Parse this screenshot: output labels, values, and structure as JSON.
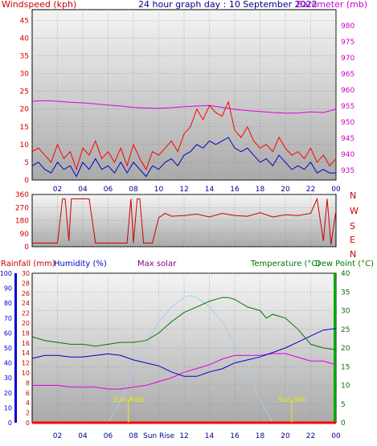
{
  "chart_data": [
    {
      "id": "wind_baro",
      "type": "line",
      "title": "24 hour graph day : 10 September 2022",
      "left_axis_label": "Windspeed (kph)",
      "right_axis_label": "Barometer (mb)",
      "x_tick_labels": [
        "02",
        "04",
        "06",
        "08",
        "10",
        "12",
        "14",
        "16",
        "18",
        "20",
        "22",
        "00"
      ],
      "x_range": [
        0,
        24
      ],
      "left_ticks": [
        "0",
        "5",
        "10",
        "15",
        "20",
        "25",
        "30",
        "35",
        "40",
        "45"
      ],
      "left_range": [
        0,
        48
      ],
      "right_ticks": [
        "935",
        "940",
        "945",
        "950",
        "955",
        "960",
        "965",
        "970",
        "975",
        "980"
      ],
      "right_range": [
        932,
        985
      ],
      "colors": {
        "gust": "#ff0000",
        "average": "#0000cc",
        "barometer": "#dd00dd"
      },
      "series": [
        {
          "key": "gust",
          "x": [
            0,
            0.5,
            1,
            1.5,
            2,
            2.5,
            3,
            3.5,
            4,
            4.5,
            5,
            5.5,
            6,
            6.5,
            7,
            7.5,
            8,
            8.5,
            9,
            9.5,
            10,
            10.5,
            11,
            11.5,
            12,
            12.5,
            13,
            13.5,
            14,
            14.5,
            15,
            15.5,
            16,
            16.5,
            17,
            17.5,
            18,
            18.5,
            19,
            19.5,
            20,
            20.5,
            21,
            21.5,
            22,
            22.5,
            23,
            23.5,
            24
          ],
          "values": [
            8,
            9,
            7,
            5,
            10,
            6,
            8,
            3,
            9,
            7,
            11,
            6,
            8,
            5,
            9,
            4,
            10,
            6,
            3,
            8,
            7,
            9,
            11,
            8,
            13,
            15,
            20,
            17,
            21,
            19,
            18,
            22,
            14,
            12,
            15,
            11,
            9,
            10,
            8,
            12,
            9,
            7,
            8,
            6,
            9,
            5,
            7,
            4,
            6
          ]
        },
        {
          "key": "average",
          "x": [
            0,
            0.5,
            1,
            1.5,
            2,
            2.5,
            3,
            3.5,
            4,
            4.5,
            5,
            5.5,
            6,
            6.5,
            7,
            7.5,
            8,
            8.5,
            9,
            9.5,
            10,
            10.5,
            11,
            11.5,
            12,
            12.5,
            13,
            13.5,
            14,
            14.5,
            15,
            15.5,
            16,
            16.5,
            17,
            17.5,
            18,
            18.5,
            19,
            19.5,
            20,
            20.5,
            21,
            21.5,
            22,
            22.5,
            23,
            23.5,
            24
          ],
          "values": [
            4,
            5,
            3,
            2,
            5,
            3,
            4,
            1,
            5,
            3,
            6,
            3,
            4,
            2,
            5,
            2,
            5,
            3,
            1,
            4,
            3,
            5,
            6,
            4,
            7,
            8,
            10,
            9,
            11,
            10,
            11,
            12,
            9,
            8,
            9,
            7,
            5,
            6,
            4,
            7,
            5,
            3,
            4,
            3,
            5,
            2,
            3,
            2,
            2
          ]
        },
        {
          "key": "barometer",
          "x": [
            0,
            1,
            2,
            3,
            4,
            5,
            6,
            7,
            8,
            9,
            10,
            11,
            12,
            13,
            14,
            15,
            16,
            17,
            18,
            19,
            20,
            21,
            22,
            23,
            24
          ],
          "values": [
            956.5,
            956.7,
            956.5,
            956.2,
            956.0,
            955.7,
            955.3,
            955.0,
            954.6,
            954.4,
            954.3,
            954.5,
            954.8,
            955.0,
            955.2,
            954.6,
            954.0,
            953.6,
            953.3,
            953.0,
            952.8,
            952.8,
            953.2,
            953.0,
            954.0
          ]
        }
      ]
    },
    {
      "id": "wind_dir",
      "type": "line",
      "left_ticks": [
        "0",
        "90",
        "180",
        "270",
        "360"
      ],
      "left_range": [
        0,
        360
      ],
      "right_labels": [
        "N",
        "W",
        "S",
        "E",
        "N"
      ],
      "color": "#cc0000",
      "series": [
        {
          "key": "direction",
          "x": [
            0,
            0.5,
            1,
            1.5,
            2,
            2.4,
            2.6,
            2.9,
            3.1,
            3.5,
            4,
            4.5,
            5,
            6,
            7,
            7.5,
            7.8,
            8,
            8.3,
            8.5,
            8.8,
            9.2,
            9.5,
            10,
            10.5,
            11,
            12,
            13,
            14,
            15,
            16,
            17,
            18,
            19,
            20,
            21,
            22,
            22.5,
            23,
            23.3,
            23.6,
            24
          ],
          "values": [
            25,
            25,
            25,
            25,
            25,
            330,
            330,
            40,
            330,
            330,
            330,
            330,
            25,
            25,
            25,
            25,
            330,
            25,
            330,
            330,
            25,
            25,
            25,
            200,
            230,
            210,
            215,
            225,
            205,
            230,
            215,
            210,
            235,
            205,
            220,
            215,
            230,
            330,
            40,
            330,
            15,
            250
          ]
        }
      ]
    },
    {
      "id": "rain_temp",
      "type": "line",
      "left_axis_labels": [
        "Rainfall (mm)",
        "Humidity (%)"
      ],
      "center_label": "Max solar",
      "right_axis_labels": [
        "Temperature (°C)",
        "Dew Point (°C)"
      ],
      "rain_ticks": [
        "0",
        "10",
        "20",
        "30",
        "40",
        "50",
        "60",
        "70",
        "80",
        "90",
        "100"
      ],
      "humidity_ticks": [
        "0",
        "2",
        "4",
        "6",
        "8",
        "10",
        "12",
        "14",
        "16",
        "18",
        "20",
        "22",
        "24",
        "26",
        "28",
        "30"
      ],
      "temp_ticks": [
        "0",
        "5",
        "10",
        "15",
        "20",
        "25",
        "30",
        "35",
        "40"
      ],
      "temp_range": [
        0,
        40
      ],
      "sunrise_label": "Sun Rise",
      "sunset_label": "Sun Set",
      "x_tick_labels": [
        "02",
        "04",
        "06",
        "08",
        "Sun Rise",
        "12",
        "14",
        "16",
        "18",
        "20",
        "22",
        "00"
      ],
      "colors": {
        "temperature": "#007700",
        "dewpoint": "#dd00dd",
        "humidity": "#0000cc",
        "solar": "#aaccee",
        "rain": "#ff0000",
        "sun": "#eeee00"
      },
      "sunrise_hour": 7.6,
      "sunset_hour": 20.5,
      "series": [
        {
          "key": "temperature",
          "x": [
            0,
            1,
            2,
            3,
            4,
            5,
            6,
            7,
            8,
            9,
            10,
            11,
            12,
            13,
            14,
            15,
            15.5,
            16,
            17,
            18,
            18.5,
            19,
            20,
            21,
            22,
            23,
            24
          ],
          "values": [
            23,
            22,
            21.5,
            21,
            21,
            20.5,
            21,
            21.5,
            21.5,
            22,
            24,
            27,
            29.5,
            31,
            32.5,
            33.5,
            33.5,
            33,
            31,
            30,
            28,
            29,
            28,
            25,
            21,
            20,
            19.5
          ]
        },
        {
          "key": "dewpoint",
          "x": [
            0,
            1,
            2,
            3,
            4,
            5,
            6,
            7,
            8,
            9,
            10,
            11,
            12,
            13,
            14,
            15,
            16,
            17,
            18,
            19,
            20,
            21,
            22,
            23,
            24
          ],
          "values": [
            10,
            10,
            10,
            9.5,
            9.5,
            9.5,
            9,
            9,
            9.5,
            10,
            11,
            12,
            13.5,
            14.5,
            15.5,
            17,
            18,
            18,
            18,
            18.5,
            18.5,
            17.5,
            16.5,
            16.5,
            15.5
          ]
        },
        {
          "key": "humidity",
          "x": [
            0,
            1,
            2,
            3,
            4,
            5,
            6,
            7,
            8,
            9,
            10,
            11,
            12,
            13,
            14,
            15,
            16,
            17,
            18,
            19,
            20,
            21,
            22,
            23,
            24
          ],
          "values": [
            43,
            45,
            45,
            44,
            44,
            45,
            46,
            45,
            42,
            40,
            38,
            34,
            31,
            31,
            34,
            36,
            40,
            42,
            44,
            47,
            50,
            54,
            58,
            62,
            63
          ]
        },
        {
          "key": "max_solar",
          "x": [
            6,
            7,
            8,
            9,
            10,
            11,
            12,
            12.5,
            13,
            14,
            15,
            16,
            17,
            18,
            19
          ],
          "values": [
            0,
            6,
            14,
            21,
            27,
            31,
            33.5,
            34,
            33.5,
            31,
            27,
            21,
            14,
            6,
            0
          ]
        },
        {
          "key": "rainfall",
          "x": [
            0,
            24
          ],
          "values": [
            0,
            0
          ]
        }
      ]
    }
  ]
}
